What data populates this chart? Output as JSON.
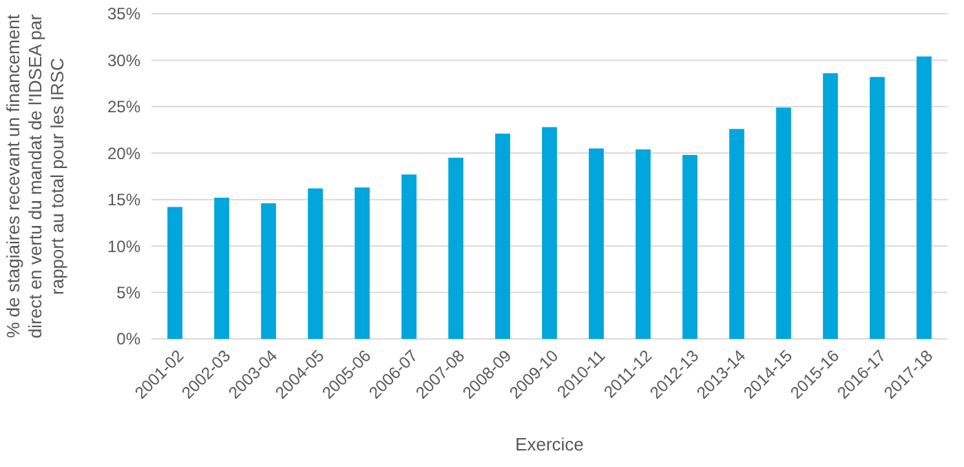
{
  "chart_data": {
    "type": "bar",
    "xlabel": "Exercice",
    "ylabel": "% de stagiaires recevant un financement direct en vertu du mandat de l'IDSEA par rapport au total pour les IRSC",
    "categories": [
      "2001-02",
      "2002-03",
      "2003-04",
      "2004-05",
      "2005-06",
      "2006-07",
      "2007-08",
      "2008-09",
      "2009-10",
      "2010-11",
      "2011-12",
      "2012-13",
      "2013-14",
      "2014-15",
      "2015-16",
      "2016-17",
      "2017-18"
    ],
    "values": [
      14.2,
      15.2,
      14.6,
      16.2,
      16.3,
      17.7,
      19.5,
      22.1,
      22.8,
      20.5,
      20.4,
      19.8,
      22.6,
      24.9,
      28.6,
      28.2,
      30.4
    ],
    "color": "#00a6dc",
    "ylim": [
      0,
      35
    ],
    "yticks": [
      {
        "value": 0,
        "label": "0%"
      },
      {
        "value": 5,
        "label": "5%"
      },
      {
        "value": 10,
        "label": "10%"
      },
      {
        "value": 15,
        "label": "15%"
      },
      {
        "value": 20,
        "label": "20%"
      },
      {
        "value": 25,
        "label": "25%"
      },
      {
        "value": 30,
        "label": "30%"
      },
      {
        "value": 35,
        "label": "35%"
      }
    ],
    "grid": "y"
  }
}
